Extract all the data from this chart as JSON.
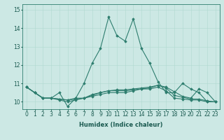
{
  "xlabel": "Humidex (Indice chaleur)",
  "ylabel": "",
  "background_color": "#cce8e4",
  "line_color": "#2d7d6e",
  "grid_color": "#b0d8d0",
  "xlim": [
    -0.5,
    23.5
  ],
  "ylim": [
    9.6,
    15.3
  ],
  "xticks": [
    0,
    1,
    2,
    3,
    4,
    5,
    6,
    7,
    8,
    9,
    10,
    11,
    12,
    13,
    14,
    15,
    16,
    17,
    18,
    19,
    20,
    21,
    22,
    23
  ],
  "yticks": [
    10,
    11,
    12,
    13,
    14,
    15
  ],
  "series": [
    [
      10.8,
      10.5,
      10.2,
      10.2,
      10.5,
      9.75,
      10.2,
      11.0,
      12.1,
      12.9,
      14.6,
      13.6,
      13.3,
      14.5,
      12.9,
      12.1,
      11.1,
      10.5,
      10.5,
      11.0,
      10.7,
      10.5,
      10.0,
      10.0
    ],
    [
      10.8,
      10.5,
      10.2,
      10.2,
      10.15,
      10.1,
      10.15,
      10.2,
      10.4,
      10.5,
      10.6,
      10.65,
      10.65,
      10.7,
      10.75,
      10.8,
      10.9,
      10.8,
      10.55,
      10.3,
      10.2,
      10.7,
      10.5,
      10.0
    ],
    [
      10.8,
      10.5,
      10.2,
      10.2,
      10.15,
      10.1,
      10.2,
      10.2,
      10.35,
      10.5,
      10.6,
      10.6,
      10.6,
      10.65,
      10.7,
      10.75,
      10.9,
      10.75,
      10.35,
      10.25,
      10.15,
      10.15,
      10.05,
      10.0
    ],
    [
      10.8,
      10.5,
      10.2,
      10.2,
      10.1,
      10.0,
      10.1,
      10.2,
      10.3,
      10.4,
      10.5,
      10.5,
      10.5,
      10.6,
      10.7,
      10.7,
      10.8,
      10.6,
      10.2,
      10.15,
      10.1,
      10.1,
      10.0,
      10.0
    ]
  ],
  "tick_fontsize": 5.5,
  "xlabel_fontsize": 6.0,
  "figsize": [
    3.2,
    2.0
  ],
  "dpi": 100
}
